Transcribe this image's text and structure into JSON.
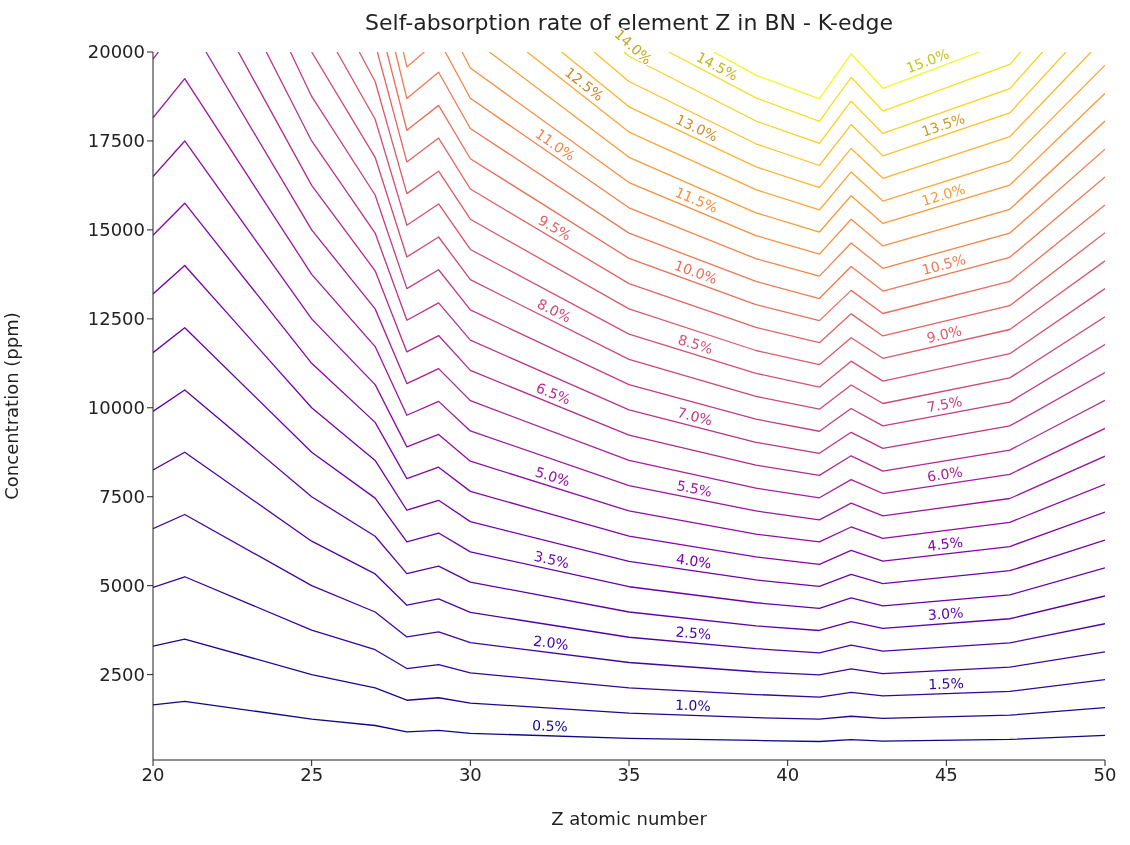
{
  "chart_data": {
    "type": "line",
    "title": "Self-absorption rate of element Z in BN - K-edge",
    "xlabel": "Z atomic number",
    "ylabel": "Concentration (ppm)",
    "x": [
      20,
      21,
      25,
      27,
      28,
      29,
      30,
      35,
      39,
      41,
      42,
      43,
      47,
      50
    ],
    "xlim": [
      20,
      50
    ],
    "xticks": [
      20,
      25,
      30,
      35,
      40,
      45,
      50
    ],
    "ylim": [
      100,
      20000
    ],
    "yticks": [
      2500,
      5000,
      7500,
      10000,
      12500,
      15000,
      17500,
      20000
    ],
    "series": [
      {
        "name": "0.5%",
        "color": "#0d0887",
        "values": [
          1650,
          1750,
          1250,
          1070,
          890,
          930,
          850,
          710,
          650,
          620,
          670,
          630,
          680,
          790
        ]
      },
      {
        "name": "1.0%",
        "color": "#220690",
        "values": [
          3300,
          3500,
          2500,
          2130,
          1780,
          1850,
          1700,
          1420,
          1290,
          1250,
          1330,
          1270,
          1360,
          1570
        ]
      },
      {
        "name": "1.5%",
        "color": "#33059a",
        "values": [
          4950,
          5250,
          3750,
          3200,
          2670,
          2780,
          2550,
          2130,
          1940,
          1870,
          2000,
          1900,
          2030,
          2360
        ]
      },
      {
        "name": "2.0%",
        "color": "#4203a1",
        "values": [
          6600,
          7000,
          5000,
          4260,
          3560,
          3700,
          3400,
          2840,
          2580,
          2490,
          2660,
          2530,
          2710,
          3140
        ]
      },
      {
        "name": "2.5%",
        "color": "#5002a2",
        "values": [
          8250,
          8750,
          6250,
          5330,
          4450,
          4630,
          4250,
          3550,
          3230,
          3110,
          3330,
          3160,
          3390,
          3930
        ]
      },
      {
        "name": "3.0%",
        "color": "#5d01a6",
        "values": [
          9900,
          10500,
          7500,
          6390,
          5340,
          5550,
          5100,
          4260,
          3870,
          3740,
          3990,
          3800,
          4070,
          4710
        ]
      },
      {
        "name": "3.5%",
        "color": "#6a00a8",
        "values": [
          11550,
          12250,
          8750,
          7460,
          6230,
          6480,
          5950,
          4970,
          4520,
          4360,
          4660,
          4430,
          4740,
          5500
        ]
      },
      {
        "name": "4.0%",
        "color": "#7701a8",
        "values": [
          13200,
          14000,
          10000,
          8520,
          7120,
          7400,
          6800,
          5680,
          5160,
          4980,
          5320,
          5060,
          5420,
          6280
        ]
      },
      {
        "name": "4.5%",
        "color": "#8405a7",
        "values": [
          14850,
          15750,
          11250,
          9590,
          8010,
          8330,
          7650,
          6390,
          5810,
          5600,
          5990,
          5690,
          6100,
          7070
        ]
      },
      {
        "name": "5.0%",
        "color": "#900da4",
        "values": [
          16500,
          17500,
          12500,
          10650,
          8900,
          9250,
          8500,
          7100,
          6450,
          6230,
          6650,
          6330,
          6780,
          7850
        ]
      },
      {
        "name": "5.5%",
        "color": "#9c179e",
        "values": [
          18150,
          19250,
          13750,
          11720,
          9790,
          10180,
          9350,
          7810,
          7100,
          6850,
          7320,
          6960,
          7450,
          8640
        ]
      },
      {
        "name": "6.0%",
        "color": "#a62098",
        "x": [
          20,
          20.17,
          21,
          21.67,
          25,
          27,
          28,
          29,
          30,
          35,
          39,
          41,
          42,
          43,
          47,
          50
        ],
        "values": [
          19800,
          20000,
          null,
          20000,
          15000,
          12780,
          10680,
          11100,
          10200,
          8520,
          7740,
          7470,
          7980,
          7590,
          8130,
          9420
        ]
      },
      {
        "name": "6.5%",
        "color": "#b12a90",
        "x": [
          22.69,
          25,
          27,
          28,
          29,
          30,
          35,
          39,
          41,
          42,
          43,
          47,
          50
        ],
        "values": [
          20000,
          16250,
          13850,
          11570,
          12030,
          11050,
          9230,
          8390,
          8100,
          8650,
          8220,
          8810,
          10210
        ]
      },
      {
        "name": "7.0%",
        "color": "#ba3388",
        "x": [
          23.57,
          25,
          27,
          28,
          29,
          30,
          35,
          39,
          41,
          42,
          43,
          47,
          50
        ],
        "values": [
          20000,
          17500,
          14910,
          12460,
          12950,
          11900,
          9940,
          9030,
          8720,
          9310,
          8860,
          9490,
          10990
        ]
      },
      {
        "name": "7.5%",
        "color": "#c33d80",
        "x": [
          24.33,
          25,
          27,
          28,
          29,
          30,
          35,
          39,
          41,
          42,
          43,
          47,
          50
        ],
        "values": [
          20000,
          18750,
          15980,
          13350,
          13880,
          12750,
          10650,
          9680,
          9340,
          9980,
          9490,
          10160,
          11780
        ]
      },
      {
        "name": "8.0%",
        "color": "#cc4778",
        "x": [
          25,
          27,
          28,
          29,
          30,
          35,
          39,
          41,
          42,
          43,
          47,
          50
        ],
        "values": [
          20000,
          17040,
          14240,
          14800,
          13600,
          11360,
          10320,
          9960,
          10640,
          10120,
          10840,
          12560
        ]
      },
      {
        "name": "8.5%",
        "color": "#d35171",
        "x": [
          25.8,
          27,
          28,
          29,
          30,
          35,
          39,
          41,
          42,
          43,
          47,
          50
        ],
        "values": [
          20000,
          18110,
          15130,
          15730,
          14450,
          12070,
          10970,
          10580,
          11310,
          10750,
          11520,
          13350
        ]
      },
      {
        "name": "9.0%",
        "color": "#da5b69",
        "x": [
          26.5,
          27,
          28,
          29,
          30,
          35,
          39,
          41,
          42,
          43,
          47,
          50
        ],
        "values": [
          20000,
          19170,
          16020,
          16650,
          15300,
          12780,
          11610,
          11210,
          11970,
          11390,
          12200,
          14130
        ]
      },
      {
        "name": "9.5%",
        "color": "#e16462",
        "x": [
          27.07,
          28,
          29,
          30,
          35,
          39,
          41,
          42,
          43,
          47,
          50
        ],
        "values": [
          20000,
          16910,
          17580,
          16150,
          13490,
          12260,
          11830,
          12640,
          12020,
          12870,
          14920
        ]
      },
      {
        "name": "10.0%",
        "color": "#e76f5a",
        "x": [
          27.37,
          28,
          29,
          30,
          35,
          39,
          41,
          42,
          43,
          47,
          50
        ],
        "values": [
          20000,
          17800,
          18500,
          17000,
          14200,
          12900,
          12450,
          13300,
          12650,
          13550,
          15700
        ]
      },
      {
        "name": "10.5%",
        "color": "#ed7953",
        "x": [
          27.64,
          28,
          29,
          30,
          35,
          39,
          41,
          42,
          43,
          47,
          50
        ],
        "values": [
          20000,
          18690,
          19430,
          17850,
          14910,
          13550,
          13070,
          13970,
          13280,
          14230,
          16490
        ]
      },
      {
        "name": "11.0%",
        "color": "#f2844b",
        "x": [
          27.89,
          28,
          28.55,
          29,
          29.21,
          30,
          35,
          39,
          41,
          42,
          43,
          47,
          50
        ],
        "values": [
          20000,
          19580,
          20000,
          null,
          20000,
          18700,
          15620,
          14190,
          13700,
          14630,
          13920,
          14910,
          17270
        ]
      },
      {
        "name": "11.5%",
        "color": "#f68f44",
        "x": [
          29.74,
          30,
          35,
          39,
          41,
          42,
          43,
          47,
          50
        ],
        "values": [
          20000,
          19550,
          16330,
          14840,
          14320,
          15300,
          14550,
          15580,
          18060
        ]
      },
      {
        "name": "12.0%",
        "color": "#f89b3b",
        "x": [
          30.6,
          35,
          39,
          41,
          42,
          43,
          47,
          50
        ],
        "values": [
          20000,
          17040,
          15480,
          14940,
          15960,
          15180,
          16260,
          18840
        ]
      },
      {
        "name": "12.5%",
        "color": "#fca636",
        "x": [
          31.79,
          35,
          39,
          41,
          42,
          43,
          47,
          50
        ],
        "values": [
          20000,
          17750,
          16130,
          15560,
          16630,
          15810,
          16940,
          19630
        ]
      },
      {
        "name": "13.0%",
        "color": "#fdb42f",
        "x": [
          32.88,
          35,
          39,
          41,
          42,
          43,
          47,
          49.56
        ],
        "values": [
          20000,
          18460,
          16770,
          16190,
          17290,
          16450,
          17620,
          20000
        ]
      },
      {
        "name": "13.5%",
        "color": "#fdc229",
        "x": [
          33.9,
          35,
          39,
          41,
          42,
          43,
          47,
          48.77
        ],
        "values": [
          20000,
          19170,
          17420,
          16810,
          17960,
          17080,
          18290,
          20000
        ]
      },
      {
        "name": "14.0%",
        "color": "#fad024",
        "x": [
          34.85,
          35,
          39,
          41,
          42,
          43,
          47,
          48.03
        ],
        "values": [
          20000,
          19880,
          18060,
          17430,
          18620,
          17710,
          18970,
          20000
        ]
      },
      {
        "name": "14.5%",
        "color": "#f6de26",
        "x": [
          36.26,
          39,
          41,
          42,
          43,
          47,
          47.34
        ],
        "values": [
          20000,
          18710,
          18050,
          19290,
          18340,
          19650,
          20000
        ]
      },
      {
        "name": "15.0%",
        "color": "#f0f921",
        "x": [
          37.67,
          39,
          41,
          42,
          43,
          46.04
        ],
        "values": [
          20000,
          19350,
          18680,
          19950,
          18980,
          20000
        ]
      }
    ]
  }
}
